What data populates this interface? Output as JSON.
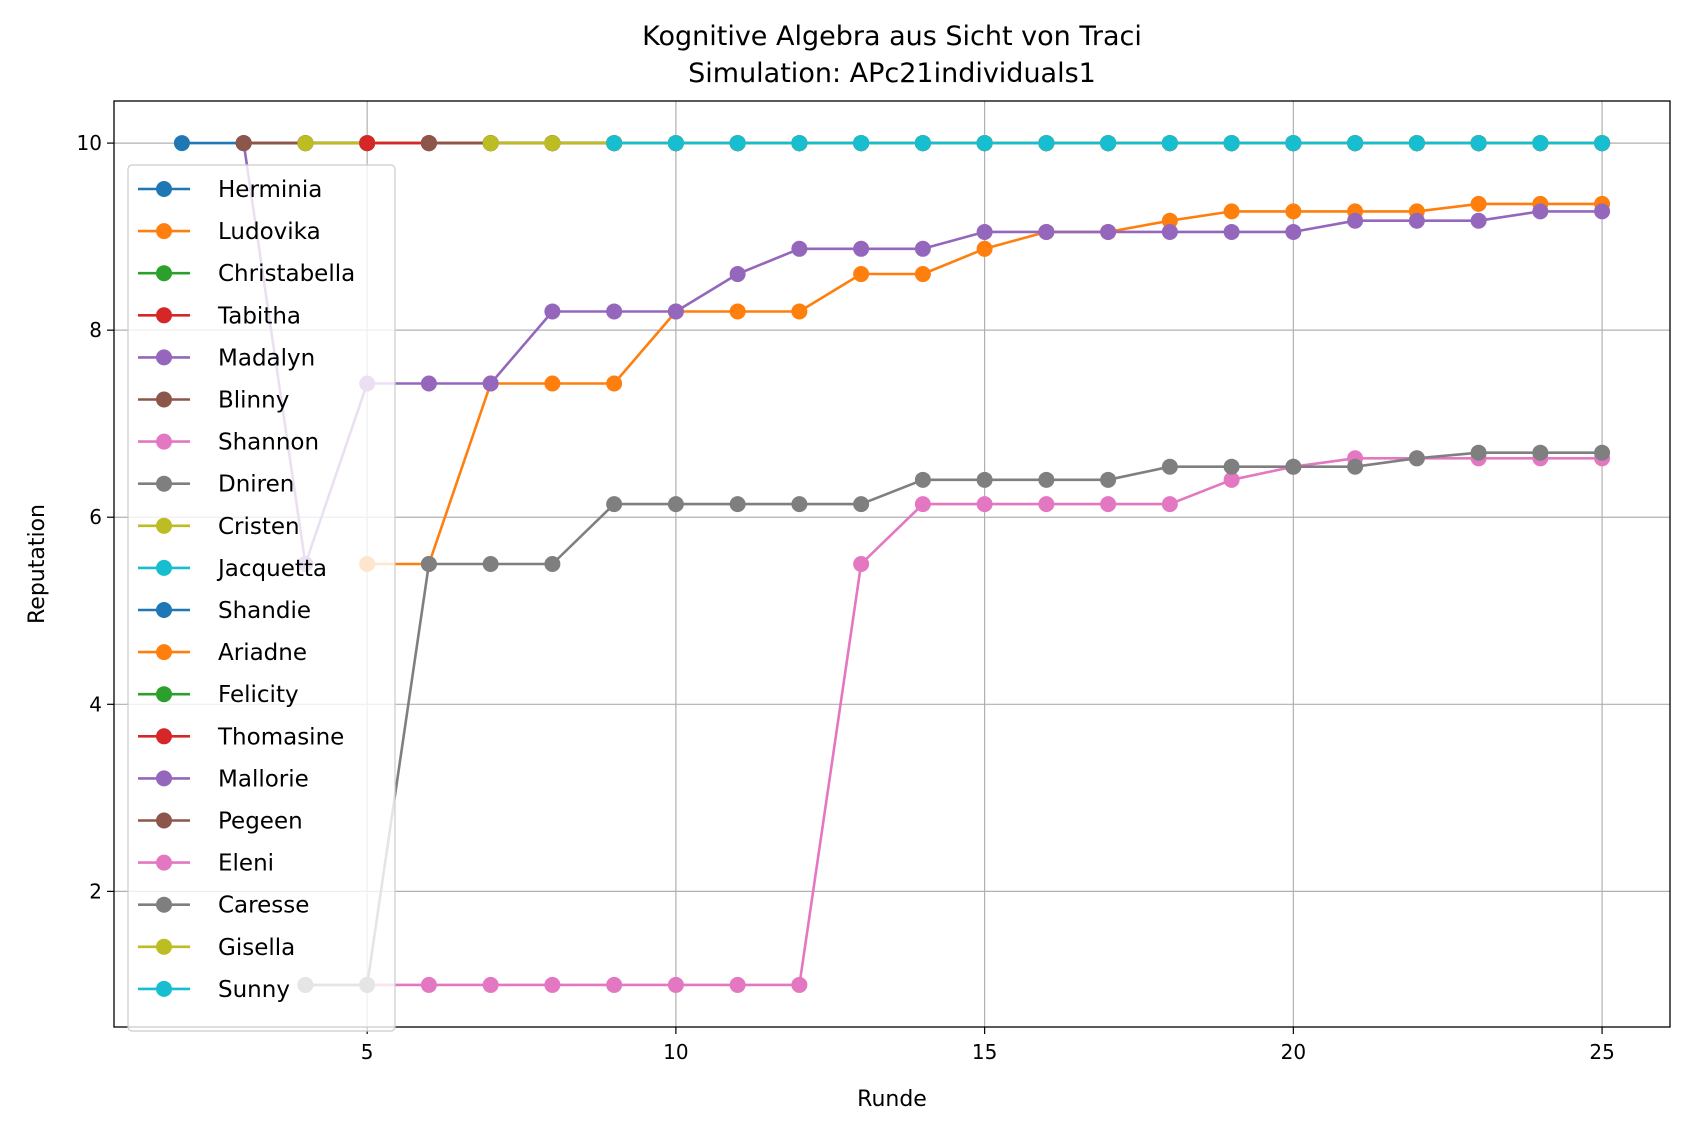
{
  "chart_data": {
    "type": "line",
    "title": "Kognitive Algebra aus Sicht von Traci",
    "subtitle": "Simulation: APc21individuals1",
    "xlabel": "Runde",
    "ylabel": "Reputation",
    "xlim": [
      0.9,
      26.1
    ],
    "ylim": [
      0.55,
      10.45
    ],
    "xticks": [
      5,
      10,
      15,
      20,
      25
    ],
    "yticks": [
      2,
      4,
      6,
      8,
      10
    ],
    "grid": true,
    "legend_position": "left",
    "series": [
      {
        "name": "Herminia",
        "color": "#1f77b4",
        "x": [
          2,
          3,
          4,
          5,
          6,
          7,
          8,
          9,
          10,
          11,
          12,
          13,
          14,
          15,
          16,
          17,
          18,
          19,
          20,
          21,
          22,
          23,
          24,
          25
        ],
        "y": [
          10,
          10,
          10,
          10,
          10,
          10,
          10,
          10,
          10,
          10,
          10,
          10,
          10,
          10,
          10,
          10,
          10,
          10,
          10,
          10,
          10,
          10,
          10,
          10
        ]
      },
      {
        "name": "Ludovika",
        "color": "#ff7f0e",
        "x": [
          5,
          6,
          7,
          8,
          9,
          10,
          11,
          12,
          13,
          14,
          15,
          16,
          17,
          18,
          19,
          20,
          21,
          22,
          23,
          24,
          25
        ],
        "y": [
          5.5,
          5.5,
          7.43,
          7.43,
          7.43,
          8.2,
          8.2,
          8.2,
          8.6,
          8.6,
          8.87,
          9.05,
          9.05,
          9.17,
          9.27,
          9.27,
          9.27,
          9.27,
          9.35,
          9.35,
          9.35
        ]
      },
      {
        "name": "Christabella",
        "color": "#2ca02c",
        "x": [
          3,
          4,
          5,
          6,
          7,
          8,
          9,
          10,
          11,
          12,
          13,
          14,
          15,
          16,
          17,
          18,
          19,
          20,
          21,
          22,
          23,
          24,
          25
        ],
        "y": [
          10,
          10,
          10,
          10,
          10,
          10,
          10,
          10,
          10,
          10,
          10,
          10,
          10,
          10,
          10,
          10,
          10,
          10,
          10,
          10,
          10,
          10,
          10
        ]
      },
      {
        "name": "Tabitha",
        "color": "#d62728",
        "x": [
          3,
          4,
          5,
          6,
          7,
          8,
          9,
          10,
          11,
          12,
          13,
          14,
          15,
          16,
          17,
          18,
          19,
          20,
          21,
          22,
          23,
          24,
          25
        ],
        "y": [
          10,
          10,
          10,
          10,
          10,
          10,
          10,
          10,
          10,
          10,
          10,
          10,
          10,
          10,
          10,
          10,
          10,
          10,
          10,
          10,
          10,
          10,
          10
        ]
      },
      {
        "name": "Madalyn",
        "color": "#9467bd",
        "x": [
          3,
          4,
          5,
          6,
          7,
          8,
          9,
          10,
          11,
          12,
          13,
          14,
          15,
          16,
          17,
          18,
          19,
          20,
          21,
          22,
          23,
          24,
          25
        ],
        "y": [
          10,
          5.5,
          7.43,
          7.43,
          7.43,
          8.2,
          8.2,
          8.2,
          8.6,
          8.87,
          8.87,
          8.87,
          9.05,
          9.05,
          9.05,
          9.05,
          9.05,
          9.05,
          9.17,
          9.17,
          9.17,
          9.27,
          9.27
        ]
      },
      {
        "name": "Blinny",
        "color": "#8c564b",
        "x": [
          3,
          4,
          5,
          6,
          7,
          8,
          9,
          10,
          11,
          12,
          13,
          14,
          15,
          16,
          17,
          18,
          19,
          20,
          21,
          22,
          23,
          24,
          25
        ],
        "y": [
          10,
          10,
          10,
          10,
          10,
          10,
          10,
          10,
          10,
          10,
          10,
          10,
          10,
          10,
          10,
          10,
          10,
          10,
          10,
          10,
          10,
          10,
          10
        ]
      },
      {
        "name": "Shannon",
        "color": "#e377c2",
        "x": [
          4,
          5,
          6,
          7,
          8,
          9,
          10,
          11,
          12,
          13,
          14,
          15,
          16,
          17,
          18,
          19,
          20,
          21,
          22,
          23,
          24,
          25
        ],
        "y": [
          1,
          1,
          1,
          1,
          1,
          1,
          1,
          1,
          1,
          5.5,
          6.14,
          6.14,
          6.14,
          6.14,
          6.14,
          6.4,
          6.54,
          6.63,
          6.63,
          6.63,
          6.63,
          6.63
        ]
      },
      {
        "name": "Dniren",
        "color": "#7f7f7f",
        "x": [
          4,
          5,
          6,
          7,
          8,
          9,
          10,
          11,
          12,
          13,
          14,
          15,
          16,
          17,
          18,
          19,
          20,
          21,
          22,
          23,
          24,
          25
        ],
        "y": [
          1,
          1,
          5.5,
          5.5,
          5.5,
          6.14,
          6.14,
          6.14,
          6.14,
          6.14,
          6.4,
          6.4,
          6.4,
          6.4,
          6.54,
          6.54,
          6.54,
          6.54,
          6.63,
          6.69,
          6.69,
          6.69
        ]
      },
      {
        "name": "Cristen",
        "color": "#bcbd22",
        "x": [
          4,
          5,
          6,
          7,
          8,
          9,
          10,
          11,
          12,
          13,
          14,
          15,
          16,
          17,
          18,
          19,
          20,
          21,
          22,
          23,
          24,
          25
        ],
        "y": [
          10,
          10,
          10,
          10,
          10,
          10,
          10,
          10,
          10,
          10,
          10,
          10,
          10,
          10,
          10,
          10,
          10,
          10,
          10,
          10,
          10,
          10
        ]
      },
      {
        "name": "Jacquetta",
        "color": "#17becf",
        "x": [
          9,
          10,
          11,
          12,
          13,
          14,
          15,
          16,
          17,
          18,
          19,
          20,
          21,
          22,
          23,
          24,
          25
        ],
        "y": [
          10,
          10,
          10,
          10,
          10,
          10,
          10,
          10,
          10,
          10,
          10,
          10,
          10,
          10,
          10,
          10,
          10
        ]
      },
      {
        "name": "Shandie",
        "color": "#1f77b4",
        "x": [
          9,
          10,
          11,
          12,
          13,
          14,
          15,
          16,
          17,
          18,
          19,
          20,
          21,
          22,
          23,
          24,
          25
        ],
        "y": [
          10,
          10,
          10,
          10,
          10,
          10,
          10,
          10,
          10,
          10,
          10,
          10,
          10,
          10,
          10,
          10,
          10
        ]
      },
      {
        "name": "Ariadne",
        "color": "#ff7f0e",
        "x": [
          9,
          10,
          11,
          12,
          13,
          14,
          15,
          16,
          17,
          18,
          19,
          20,
          21,
          22,
          23,
          24,
          25
        ],
        "y": [
          10,
          10,
          10,
          10,
          10,
          10,
          10,
          10,
          10,
          10,
          10,
          10,
          10,
          10,
          10,
          10,
          10
        ]
      },
      {
        "name": "Felicity",
        "color": "#2ca02c",
        "x": [
          9,
          10,
          11,
          12,
          13,
          14,
          15,
          16,
          17,
          18,
          19,
          20,
          21,
          22,
          23,
          24,
          25
        ],
        "y": [
          10,
          10,
          10,
          10,
          10,
          10,
          10,
          10,
          10,
          10,
          10,
          10,
          10,
          10,
          10,
          10,
          10
        ]
      },
      {
        "name": "Thomasine",
        "color": "#d62728",
        "x": [
          5,
          6,
          7,
          8,
          9,
          10,
          11,
          12,
          13,
          14,
          15,
          16,
          17,
          18,
          19,
          20,
          21,
          22,
          23,
          24,
          25
        ],
        "y": [
          10,
          10,
          10,
          10,
          10,
          10,
          10,
          10,
          10,
          10,
          10,
          10,
          10,
          10,
          10,
          10,
          10,
          10,
          10,
          10,
          10
        ]
      },
      {
        "name": "Mallorie",
        "color": "#9467bd",
        "x": [
          9,
          10,
          11,
          12,
          13,
          14,
          15,
          16,
          17,
          18,
          19,
          20,
          21,
          22,
          23,
          24,
          25
        ],
        "y": [
          10,
          10,
          10,
          10,
          10,
          10,
          10,
          10,
          10,
          10,
          10,
          10,
          10,
          10,
          10,
          10,
          10
        ]
      },
      {
        "name": "Pegeen",
        "color": "#8c564b",
        "x": [
          6,
          7,
          8,
          9,
          10,
          11,
          12,
          13,
          14,
          15,
          16,
          17,
          18,
          19,
          20,
          21,
          22,
          23,
          24,
          25
        ],
        "y": [
          10,
          10,
          10,
          10,
          10,
          10,
          10,
          10,
          10,
          10,
          10,
          10,
          10,
          10,
          10,
          10,
          10,
          10,
          10,
          10
        ]
      },
      {
        "name": "Eleni",
        "color": "#e377c2",
        "x": [
          9,
          10,
          11,
          12,
          13,
          14,
          15,
          16,
          17,
          18,
          19,
          20,
          21,
          22,
          23,
          24,
          25
        ],
        "y": [
          10,
          10,
          10,
          10,
          10,
          10,
          10,
          10,
          10,
          10,
          10,
          10,
          10,
          10,
          10,
          10,
          10
        ]
      },
      {
        "name": "Caresse",
        "color": "#7f7f7f",
        "x": [
          9,
          10,
          11,
          12,
          13,
          14,
          15,
          16,
          17,
          18,
          19,
          20,
          21,
          22,
          23,
          24,
          25
        ],
        "y": [
          10,
          10,
          10,
          10,
          10,
          10,
          10,
          10,
          10,
          10,
          10,
          10,
          10,
          10,
          10,
          10,
          10
        ]
      },
      {
        "name": "Gisella",
        "color": "#bcbd22",
        "x": [
          7,
          8,
          9,
          10,
          11,
          12,
          13,
          14,
          15,
          16,
          17,
          18,
          19,
          20,
          21,
          22,
          23,
          24,
          25
        ],
        "y": [
          10,
          10,
          10,
          10,
          10,
          10,
          10,
          10,
          10,
          10,
          10,
          10,
          10,
          10,
          10,
          10,
          10,
          10,
          10
        ]
      },
      {
        "name": "Sunny",
        "color": "#17becf",
        "x": [
          9,
          10,
          11,
          12,
          13,
          14,
          15,
          16,
          17,
          18,
          19,
          20,
          21,
          22,
          23,
          24,
          25
        ],
        "y": [
          10,
          10,
          10,
          10,
          10,
          10,
          10,
          10,
          10,
          10,
          10,
          10,
          10,
          10,
          10,
          10,
          10
        ]
      }
    ]
  }
}
